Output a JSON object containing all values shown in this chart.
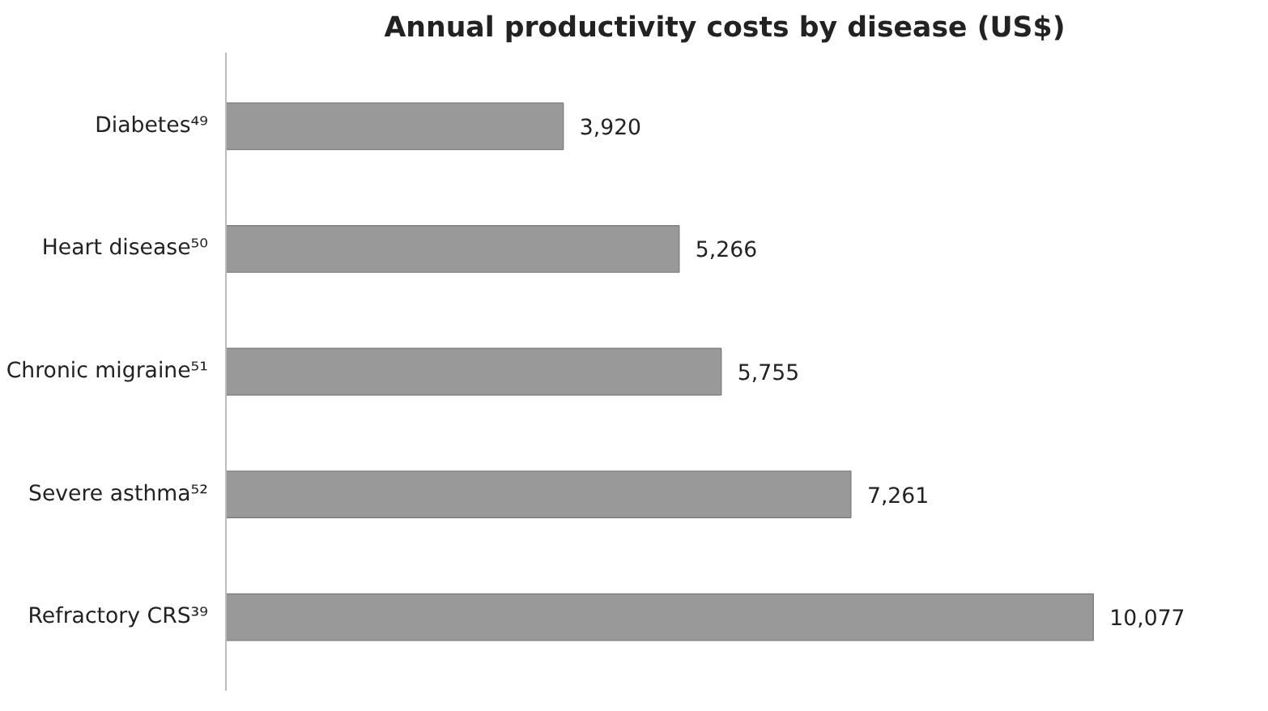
{
  "chart_data": {
    "type": "bar",
    "orientation": "horizontal",
    "title": "Annual productivity costs by disease (US$)",
    "categories": [
      "Diabetes⁴⁹",
      "Heart disease⁵⁰",
      "Chronic migraine⁵¹",
      "Severe asthma⁵²",
      "Refractory CRS³⁹"
    ],
    "values": [
      3920,
      5266,
      5755,
      7261,
      10077
    ],
    "value_labels": [
      "3,920",
      "5,266",
      "5,755",
      "7,261",
      "10,077"
    ],
    "color": "#999999",
    "grid": false,
    "tick_labels": "y"
  }
}
